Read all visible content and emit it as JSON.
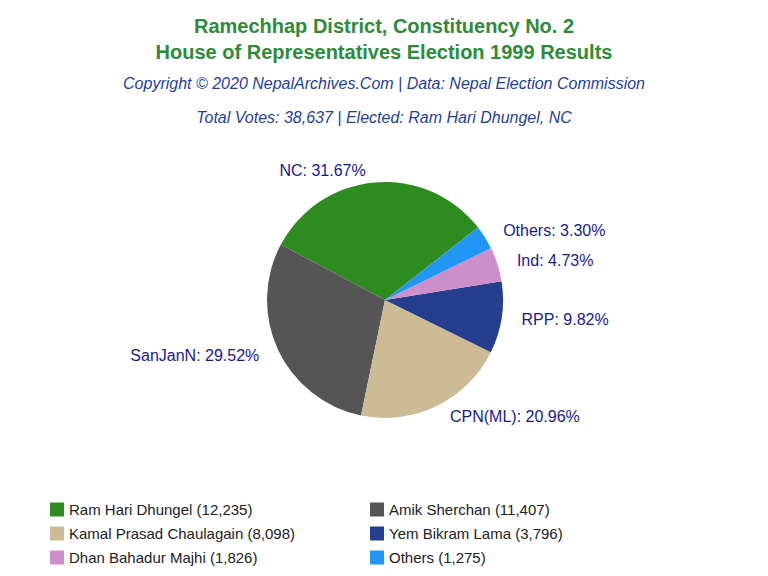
{
  "chart_data": {
    "type": "pie",
    "title": "Ramechhap District, Constituency No. 2\nHouse of Representatives Election 1999 Results",
    "subtitle": [
      "Copyright © 2020 NepalArchives.Com | Data: Nepal Election Commission",
      "Total Votes: 38,637 | Elected: Ram Hari Dhungel, NC"
    ],
    "categories": [
      "NC",
      "SanJanN",
      "CPN(ML)",
      "RPP",
      "Ind",
      "Others"
    ],
    "values": [
      31.67,
      29.52,
      20.96,
      9.82,
      4.73,
      3.3
    ],
    "value_labels": [
      "NC: 31.67%",
      "SanJanN: 29.52%",
      "CPN(ML): 20.96%",
      "RPP: 9.82%",
      "Ind: 4.73%",
      "Others: 3.30%"
    ],
    "legend_labels": [
      "Ram Hari Dhungel (12,235)",
      "Amik Sherchan (11,407)",
      "Kamal Prasad Chaulagain (8,098)",
      "Yem Bikram Lama (3,796)",
      "Dhan Bahadur Majhi (1,826)",
      "Others (1,275)"
    ],
    "colors": [
      "#2e8b1f",
      "#555555",
      "#cdbb96",
      "#253f8e",
      "#cc8fcc",
      "#2196f3"
    ],
    "data_labels": true,
    "legend": "bottom left"
  }
}
